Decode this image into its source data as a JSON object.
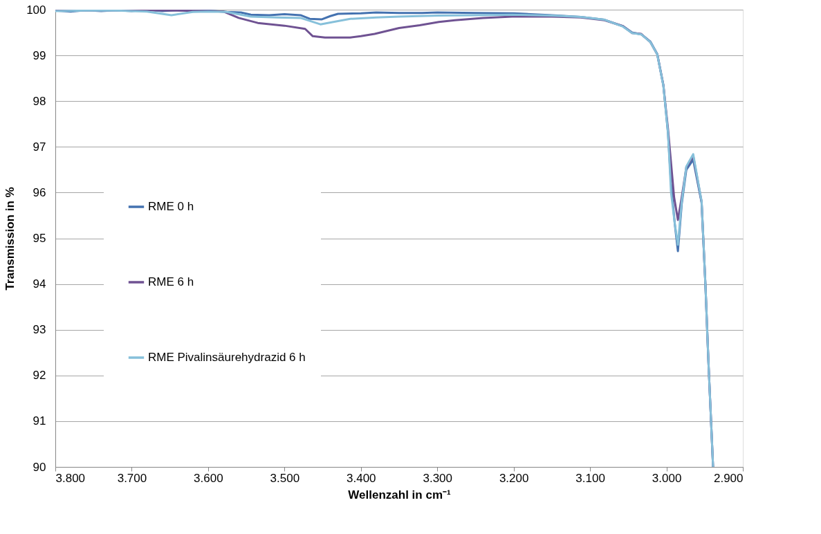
{
  "chart_data": {
    "type": "line",
    "xlabel": "Wellenzahl in cm⁻¹",
    "ylabel": "Transmission in %",
    "xlim": [
      3800,
      2900
    ],
    "xticks": [
      {
        "value": 3800,
        "label": "3.800"
      },
      {
        "value": 3700,
        "label": "3.700"
      },
      {
        "value": 3600,
        "label": "3.600"
      },
      {
        "value": 3500,
        "label": "3.500"
      },
      {
        "value": 3400,
        "label": "3.400"
      },
      {
        "value": 3300,
        "label": "3.300"
      },
      {
        "value": 3200,
        "label": "3.200"
      },
      {
        "value": 3100,
        "label": "3.100"
      },
      {
        "value": 3000,
        "label": "3.000"
      },
      {
        "value": 2900,
        "label": "2.900"
      }
    ],
    "ylim": [
      90,
      100
    ],
    "yticks": [
      90,
      91,
      92,
      93,
      94,
      95,
      96,
      97,
      98,
      99,
      100
    ],
    "grid": "y",
    "legend": "left",
    "marker": "none",
    "line_style": "solid",
    "series": [
      {
        "name": "RME 0 h",
        "color": "#4472b0",
        "x": [
          3800,
          3780,
          3760,
          3740,
          3720,
          3700,
          3680,
          3660,
          3640,
          3620,
          3600,
          3576,
          3557,
          3544,
          3520,
          3500,
          3479,
          3467,
          3451,
          3440,
          3430,
          3400,
          3380,
          3350,
          3320,
          3300,
          3250,
          3200,
          3150,
          3112,
          3081,
          3057,
          3045,
          3033,
          3021,
          3012,
          3004,
          2998,
          2994,
          2989,
          2985,
          2980,
          2974,
          2965,
          2954,
          2949,
          2945,
          2941,
          2939
        ],
        "values": [
          99.98,
          99.96,
          99.99,
          99.97,
          99.99,
          99.97,
          100.0,
          99.97,
          99.99,
          99.97,
          99.98,
          99.95,
          99.94,
          99.89,
          99.88,
          99.9,
          99.88,
          99.8,
          99.79,
          99.86,
          99.91,
          99.92,
          99.94,
          99.93,
          99.93,
          99.94,
          99.93,
          99.92,
          99.88,
          99.84,
          99.78,
          99.64,
          99.5,
          99.46,
          99.3,
          99.03,
          98.35,
          97.3,
          96.2,
          95.3,
          94.72,
          95.75,
          96.5,
          96.72,
          95.78,
          93.99,
          92.28,
          90.77,
          90.0
        ]
      },
      {
        "name": "RME 6 h",
        "color": "#6f5292",
        "x": [
          3800,
          3680,
          3640,
          3600,
          3580,
          3560,
          3535,
          3500,
          3473,
          3463,
          3447,
          3430,
          3414,
          3400,
          3382,
          3350,
          3323,
          3298,
          3277,
          3240,
          3202,
          3150,
          3112,
          3081,
          3057,
          3045,
          3033,
          3021,
          3012,
          3004,
          2998,
          2990,
          2985,
          2980,
          2974,
          2965,
          2954,
          2949,
          2945,
          2941,
          2939
        ],
        "values": [
          99.98,
          99.99,
          99.98,
          99.97,
          99.96,
          99.82,
          99.71,
          99.65,
          99.58,
          99.42,
          99.39,
          99.39,
          99.39,
          99.42,
          99.47,
          99.6,
          99.66,
          99.73,
          99.77,
          99.82,
          99.85,
          99.85,
          99.83,
          99.77,
          99.64,
          99.49,
          99.47,
          99.29,
          99.02,
          98.34,
          97.4,
          95.9,
          95.4,
          95.9,
          96.55,
          96.8,
          95.8,
          93.99,
          92.28,
          90.77,
          90.0
        ]
      },
      {
        "name": "RME Pivalinsäurehydrazid 6 h",
        "color": "#86c0da",
        "x": [
          3800,
          3760,
          3720,
          3680,
          3648,
          3620,
          3600,
          3576,
          3544,
          3510,
          3479,
          3453,
          3430,
          3414,
          3380,
          3350,
          3298,
          3250,
          3202,
          3150,
          3112,
          3081,
          3057,
          3045,
          3033,
          3021,
          3012,
          3004,
          2998,
          2994,
          2989,
          2985,
          2980,
          2974,
          2965,
          2954,
          2949,
          2945,
          2941,
          2939
        ],
        "values": [
          99.97,
          99.98,
          99.98,
          99.96,
          99.88,
          99.95,
          99.96,
          99.95,
          99.85,
          99.83,
          99.82,
          99.68,
          99.75,
          99.8,
          99.83,
          99.85,
          99.87,
          99.88,
          99.89,
          99.87,
          99.84,
          99.78,
          99.63,
          99.49,
          99.46,
          99.29,
          99.02,
          98.33,
          97.32,
          96.0,
          95.31,
          94.86,
          95.8,
          96.57,
          96.84,
          95.81,
          93.99,
          92.28,
          90.77,
          90.0
        ]
      }
    ]
  }
}
